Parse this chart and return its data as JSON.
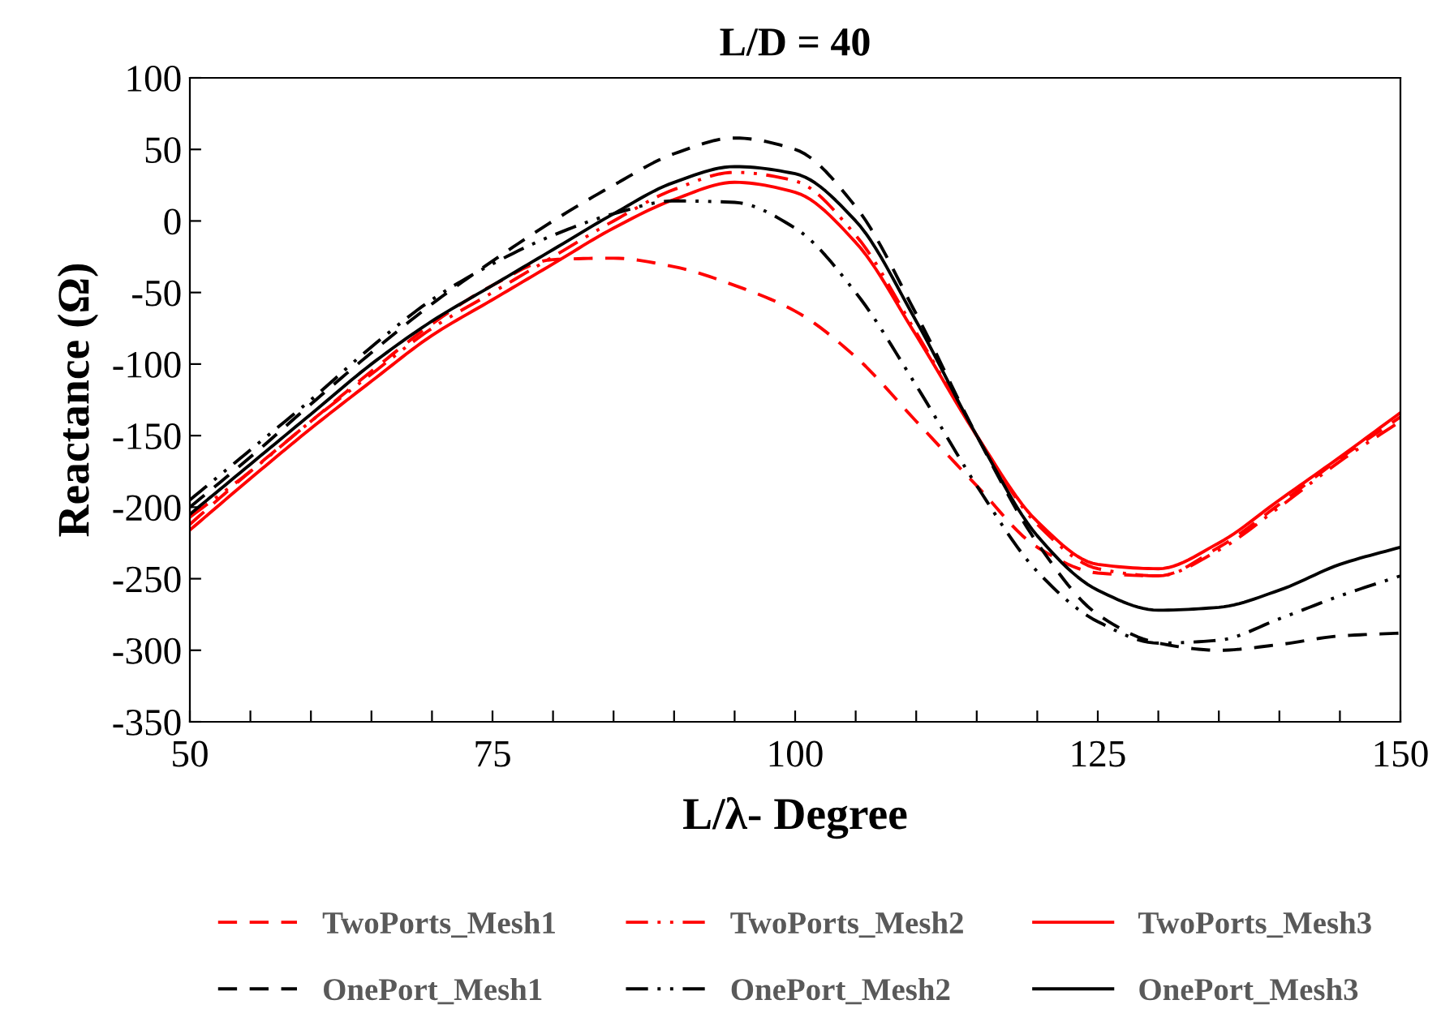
{
  "chart_data": {
    "type": "line",
    "title": "L/D = 40",
    "xlabel": "L/λ- Degree",
    "ylabel": "Reactance (Ω)",
    "x": [
      50,
      55,
      60,
      65,
      70,
      75,
      80,
      85,
      90,
      95,
      100,
      105,
      110,
      115,
      120,
      125,
      130,
      135,
      140,
      145,
      150
    ],
    "xlim": [
      50,
      150
    ],
    "ylim": [
      -350,
      100
    ],
    "xticks": [
      50,
      {
        "value": 55,
        "label": null
      },
      {
        "value": 60,
        "label": null
      },
      {
        "value": 65,
        "label": null
      },
      {
        "value": 70,
        "label": null
      },
      75,
      {
        "value": 80,
        "label": null
      },
      {
        "value": 85,
        "label": null
      },
      {
        "value": 90,
        "label": null
      },
      {
        "value": 95,
        "label": null
      },
      100,
      {
        "value": 105,
        "label": null
      },
      {
        "value": 110,
        "label": null
      },
      {
        "value": 115,
        "label": null
      },
      {
        "value": 120,
        "label": null
      },
      125,
      {
        "value": 130,
        "label": null
      },
      {
        "value": 135,
        "label": null
      },
      {
        "value": 140,
        "label": null
      },
      {
        "value": 145,
        "label": null
      },
      150
    ],
    "yticks": [
      -350,
      -300,
      -250,
      -200,
      -150,
      -100,
      -50,
      0,
      50,
      100
    ],
    "grid": false,
    "legend": "bottom",
    "marker": "none",
    "series": [
      {
        "name": "TwoPorts_Mesh1",
        "color": "#ff0000",
        "line_style": "dashed",
        "values": [
          -212,
          -175,
          -140,
          -105,
          -72,
          -45,
          -27,
          -26,
          -32,
          -45,
          -63,
          -95,
          -140,
          -185,
          -228,
          -246,
          -248,
          -228,
          -198,
          -166,
          -137
        ]
      },
      {
        "name": "TwoPorts_Mesh2",
        "color": "#ff0000",
        "line_style": "dashdot",
        "values": [
          -207,
          -175,
          -140,
          -107,
          -75,
          -50,
          -25,
          0,
          22,
          34,
          28,
          -10,
          -78,
          -150,
          -212,
          -243,
          -248,
          -230,
          -200,
          -168,
          -140
        ]
      },
      {
        "name": "TwoPorts_Mesh3",
        "color": "#ff0000",
        "line_style": "solid",
        "values": [
          -216,
          -180,
          -145,
          -112,
          -80,
          -55,
          -30,
          -5,
          15,
          27,
          20,
          -15,
          -80,
          -150,
          -210,
          -240,
          -243,
          -225,
          -195,
          -165,
          -134
        ]
      },
      {
        "name": "OnePort_Mesh1",
        "color": "#000000",
        "line_style": "dashed",
        "values": [
          -200,
          -165,
          -128,
          -92,
          -58,
          -28,
          0,
          25,
          47,
          58,
          50,
          10,
          -65,
          -150,
          -225,
          -275,
          -295,
          -300,
          -296,
          -290,
          -288
        ]
      },
      {
        "name": "OnePort_Mesh2",
        "color": "#000000",
        "line_style": "dashdot",
        "values": [
          -195,
          -160,
          -125,
          -88,
          -55,
          -30,
          -10,
          5,
          14,
          13,
          -5,
          -50,
          -115,
          -185,
          -245,
          -280,
          -295,
          -293,
          -278,
          -262,
          -248
        ]
      },
      {
        "name": "OnePort_Mesh3",
        "color": "#000000",
        "line_style": "solid",
        "values": [
          -205,
          -170,
          -135,
          -100,
          -70,
          -45,
          -20,
          5,
          27,
          38,
          33,
          0,
          -70,
          -150,
          -220,
          -258,
          -272,
          -270,
          -258,
          -240,
          -228
        ]
      }
    ]
  }
}
